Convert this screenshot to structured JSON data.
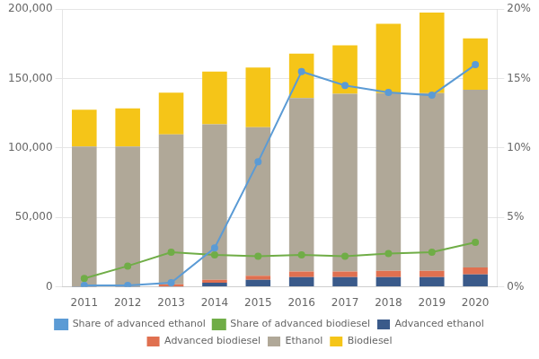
{
  "chart_data": {
    "type": "bar",
    "stacked": true,
    "grid": true,
    "legend": "bottom",
    "categories": [
      "2011",
      "2012",
      "2013",
      "2014",
      "2015",
      "2016",
      "2017",
      "2018",
      "2019",
      "2020"
    ],
    "series": [
      {
        "name": "Advanced ethanol",
        "color": "#3A5A8A",
        "values": [
          100,
          100,
          300,
          3000,
          5000,
          7000,
          7000,
          7000,
          7000,
          9000
        ]
      },
      {
        "name": "Advanced biodiesel",
        "color": "#E07050",
        "values": [
          0,
          0,
          1500,
          2000,
          3000,
          4000,
          4000,
          4500,
          4500,
          5000
        ]
      },
      {
        "name": "Ethanol",
        "color": "#B0A898",
        "values": [
          101000,
          101000,
          108000,
          112000,
          107000,
          125000,
          128000,
          128000,
          128000,
          128000
        ]
      },
      {
        "name": "Biodiesel",
        "color": "#F5C518",
        "values": [
          26500,
          27500,
          30000,
          38000,
          43000,
          32000,
          35000,
          50000,
          58000,
          37000
        ]
      },
      {
        "name": "Share of advanced ethanol",
        "type": "line",
        "axis": "y2",
        "marker": "circle",
        "color": "#5B9BD5",
        "values": [
          0.1,
          0.1,
          0.3,
          2.8,
          9.0,
          15.5,
          14.5,
          14.0,
          13.8,
          16.0
        ]
      },
      {
        "name": "Share of advanced biodiesel",
        "type": "line",
        "axis": "y2",
        "marker": "circle",
        "color": "#70AD47",
        "values": [
          0.6,
          1.5,
          2.5,
          2.3,
          2.2,
          2.3,
          2.2,
          2.4,
          2.5,
          3.2
        ]
      }
    ],
    "ylim": [
      0,
      200000
    ],
    "yticks": [
      0,
      {
        "value": 50000,
        "label": "50,000"
      },
      {
        "value": 100000,
        "label": "100,000"
      },
      {
        "value": 150000,
        "label": "150,000"
      },
      {
        "value": 200000,
        "label": "200,000"
      }
    ],
    "y2lim": [
      0,
      20
    ],
    "y2ticks": [
      {
        "value": 0,
        "label": "0%"
      },
      {
        "value": 5,
        "label": "5%"
      },
      {
        "value": 10,
        "label": "10%"
      },
      {
        "value": 15,
        "label": "15%"
      },
      {
        "value": 20,
        "label": "20%"
      }
    ]
  }
}
